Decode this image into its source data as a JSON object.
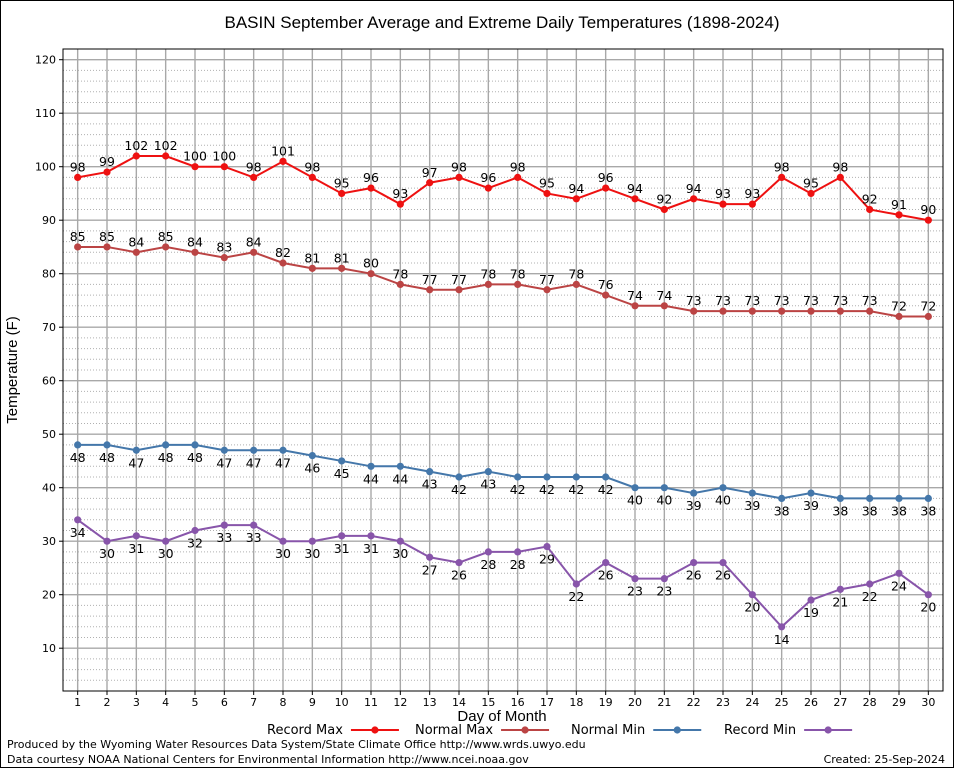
{
  "chart_data": {
    "type": "line",
    "title": "BASIN September Average and Extreme Daily Temperatures (1898-2024)",
    "xlabel": "Day of Month",
    "ylabel": "Temperature (F)",
    "xlim": [
      0.5,
      30.5
    ],
    "ylim": [
      2,
      122
    ],
    "yticks": [
      10,
      20,
      30,
      40,
      50,
      60,
      70,
      80,
      90,
      100,
      110,
      120
    ],
    "grid": true,
    "legend_position": "bottom",
    "x": [
      1,
      2,
      3,
      4,
      5,
      6,
      7,
      8,
      9,
      10,
      11,
      12,
      13,
      14,
      15,
      16,
      17,
      18,
      19,
      20,
      21,
      22,
      23,
      24,
      25,
      26,
      27,
      28,
      29,
      30
    ],
    "series": [
      {
        "name": "Record Max",
        "color": "#ee1111",
        "label_position": "above",
        "values": [
          98,
          99,
          102,
          102,
          100,
          100,
          98,
          101,
          98,
          95,
          96,
          93,
          97,
          98,
          96,
          98,
          95,
          94,
          96,
          94,
          92,
          94,
          93,
          93,
          98,
          95,
          98,
          92,
          91,
          90
        ]
      },
      {
        "name": "Normal Max",
        "color": "#bb4444",
        "label_position": "above",
        "values": [
          85,
          85,
          84,
          85,
          84,
          83,
          84,
          82,
          81,
          81,
          80,
          78,
          77,
          77,
          78,
          78,
          77,
          78,
          76,
          74,
          74,
          73,
          73,
          73,
          73,
          73,
          73,
          73,
          72,
          72
        ]
      },
      {
        "name": "Normal Min",
        "color": "#4477aa",
        "label_position": "below",
        "values": [
          48,
          48,
          47,
          48,
          48,
          47,
          47,
          47,
          46,
          45,
          44,
          44,
          43,
          42,
          43,
          42,
          42,
          42,
          42,
          40,
          40,
          39,
          40,
          39,
          38,
          39,
          38,
          38,
          38,
          38
        ]
      },
      {
        "name": "Record Min",
        "color": "#8855aa",
        "label_position": "below",
        "values": [
          34,
          30,
          31,
          30,
          32,
          33,
          33,
          30,
          30,
          31,
          31,
          30,
          27,
          26,
          28,
          28,
          29,
          22,
          26,
          23,
          23,
          26,
          26,
          20,
          14,
          19,
          21,
          22,
          24,
          20
        ]
      }
    ]
  },
  "footer": {
    "produced_by": "Produced by the Wyoming Water Resources Data System/State Climate Office http://www.wrds.uwyo.edu",
    "data_courtesy": "Data courtesy NOAA National Centers for Environmental Information http://www.ncei.noaa.gov",
    "created": "Created:  25-Sep-2024"
  }
}
